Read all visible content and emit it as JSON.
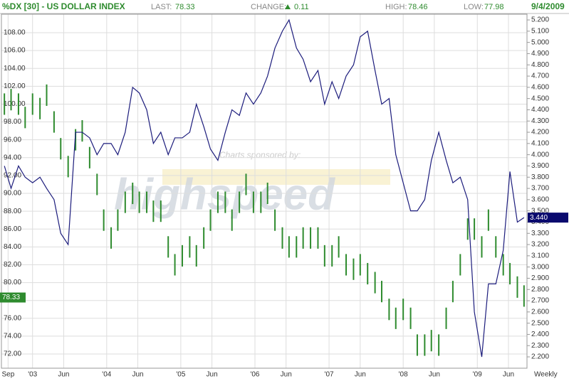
{
  "chart_data": {
    "type": "financial",
    "title": "%DX [30] - US DOLLAR INDEX",
    "stats": {
      "last_label": "LAST:",
      "last": 78.33,
      "change_label": "CHANGE:",
      "change": 0.11,
      "high_label": "HIGH:",
      "high": 78.46,
      "low_label": "LOW:",
      "low": 77.98,
      "date": "9/4/2009"
    },
    "xlabel": "Weekly",
    "annotations": [
      "Charts sponsored by:",
      "highspeed"
    ],
    "grid": true,
    "xlim": [
      2002.58,
      2009.67
    ],
    "xticks": [
      {
        "value": 2002.67,
        "label": "Sep"
      },
      {
        "value": 2003.0,
        "label": "'03"
      },
      {
        "value": 2003.42,
        "label": "Jun"
      },
      {
        "value": 2004.0,
        "label": "'04"
      },
      {
        "value": 2004.42,
        "label": "Jun"
      },
      {
        "value": 2005.0,
        "label": "'05"
      },
      {
        "value": 2005.42,
        "label": "Jun"
      },
      {
        "value": 2006.0,
        "label": "'06"
      },
      {
        "value": 2006.42,
        "label": "Jun"
      },
      {
        "value": 2007.0,
        "label": "'07"
      },
      {
        "value": 2007.42,
        "label": "Jun"
      },
      {
        "value": 2008.0,
        "label": "'08"
      },
      {
        "value": 2008.42,
        "label": "Jun"
      },
      {
        "value": 2009.0,
        "label": "'09"
      },
      {
        "value": 2009.42,
        "label": "Jun"
      }
    ],
    "ylim": [
      70.41,
      110.07
    ],
    "yticks": [
      {
        "value": 72,
        "label": "72.00"
      },
      {
        "value": 74,
        "label": "74.00"
      },
      {
        "value": 76,
        "label": "76.00"
      },
      {
        "value": 78,
        "label": "78.00"
      },
      {
        "value": 80,
        "label": "80.00"
      },
      {
        "value": 82,
        "label": "82.00"
      },
      {
        "value": 84,
        "label": "84.00"
      },
      {
        "value": 86,
        "label": "86.00"
      },
      {
        "value": 88,
        "label": "88.00"
      },
      {
        "value": 90,
        "label": "90.00"
      },
      {
        "value": 92,
        "label": "92.00"
      },
      {
        "value": 94,
        "label": "94.00"
      },
      {
        "value": 96,
        "label": "96.00"
      },
      {
        "value": 98,
        "label": "98.00"
      },
      {
        "value": 100,
        "label": "100.00"
      },
      {
        "value": 102,
        "label": "102.00"
      },
      {
        "value": 104,
        "label": "104.00"
      },
      {
        "value": 106,
        "label": "106.00"
      },
      {
        "value": 108,
        "label": "108.00"
      }
    ],
    "y2lim": [
      2.099,
      5.251
    ],
    "y2ticks": [
      {
        "value": 2.2,
        "label": "2.200"
      },
      {
        "value": 2.3,
        "label": "2.300"
      },
      {
        "value": 2.4,
        "label": "2.400"
      },
      {
        "value": 2.5,
        "label": "2.500"
      },
      {
        "value": 2.6,
        "label": "2.600"
      },
      {
        "value": 2.7,
        "label": "2.700"
      },
      {
        "value": 2.8,
        "label": "2.800"
      },
      {
        "value": 2.9,
        "label": "2.900"
      },
      {
        "value": 3.0,
        "label": "3.000"
      },
      {
        "value": 3.1,
        "label": "3.100"
      },
      {
        "value": 3.2,
        "label": "3.200"
      },
      {
        "value": 3.3,
        "label": "3.300"
      },
      {
        "value": 3.4,
        "label": "3.400"
      },
      {
        "value": 3.5,
        "label": "3.500"
      },
      {
        "value": 3.6,
        "label": "3.600"
      },
      {
        "value": 3.7,
        "label": "3.700"
      },
      {
        "value": 3.8,
        "label": "3.800"
      },
      {
        "value": 3.9,
        "label": "3.900"
      },
      {
        "value": 4.0,
        "label": "4.000"
      },
      {
        "value": 4.1,
        "label": "4.100"
      },
      {
        "value": 4.2,
        "label": "4.200"
      },
      {
        "value": 4.3,
        "label": "4.300"
      },
      {
        "value": 4.4,
        "label": "4.400"
      },
      {
        "value": 4.5,
        "label": "4.500"
      },
      {
        "value": 4.6,
        "label": "4.600"
      },
      {
        "value": 4.7,
        "label": "4.700"
      },
      {
        "value": 4.8,
        "label": "4.800"
      },
      {
        "value": 4.9,
        "label": "4.900"
      },
      {
        "value": 5.0,
        "label": "5.000"
      },
      {
        "value": 5.1,
        "label": "5.100"
      },
      {
        "value": 5.2,
        "label": "5.200"
      }
    ],
    "x": [
      2002.62,
      2002.71,
      2002.81,
      2002.9,
      2003.0,
      2003.1,
      2003.19,
      2003.29,
      2003.38,
      2003.48,
      2003.58,
      2003.67,
      2003.77,
      2003.87,
      2003.96,
      2004.06,
      2004.15,
      2004.25,
      2004.35,
      2004.44,
      2004.54,
      2004.63,
      2004.73,
      2004.83,
      2004.92,
      2005.02,
      2005.12,
      2005.21,
      2005.31,
      2005.4,
      2005.5,
      2005.6,
      2005.69,
      2005.79,
      2005.88,
      2005.98,
      2006.08,
      2006.17,
      2006.27,
      2006.37,
      2006.46,
      2006.56,
      2006.65,
      2006.75,
      2006.85,
      2006.94,
      2007.04,
      2007.13,
      2007.23,
      2007.33,
      2007.42,
      2007.52,
      2007.62,
      2007.71,
      2007.81,
      2007.9,
      2008.0,
      2008.1,
      2008.19,
      2008.29,
      2008.38,
      2008.48,
      2008.58,
      2008.67,
      2008.77,
      2008.87,
      2008.96,
      2009.06,
      2009.15,
      2009.25,
      2009.35,
      2009.44,
      2009.54,
      2009.63
    ],
    "series": [
      {
        "type": "hilo",
        "color": "#2e8b2e",
        "low": [
          98.8,
          99.3,
          98.8,
          97.3,
          98.8,
          98.3,
          99.8,
          96.8,
          93.8,
          91.8,
          94.8,
          95.8,
          92.8,
          89.8,
          85.8,
          83.8,
          85.8,
          87.8,
          88.8,
          87.8,
          87.8,
          86.8,
          86.8,
          82.8,
          80.8,
          81.8,
          82.8,
          81.8,
          83.8,
          85.8,
          87.8,
          87.8,
          85.8,
          87.8,
          89.8,
          87.8,
          87.8,
          88.8,
          85.8,
          83.8,
          82.8,
          82.8,
          83.8,
          83.8,
          83.8,
          81.8,
          81.8,
          82.8,
          80.8,
          80.3,
          80.8,
          79.8,
          78.8,
          77.8,
          75.8,
          74.8,
          75.8,
          74.8,
          71.8,
          71.8,
          72.3,
          71.8,
          74.8,
          77.8,
          80.8,
          84.8,
          84.8,
          82.8,
          85.8,
          82.8,
          80.8,
          79.8,
          78.3,
          77.3
        ],
        "high": [
          101.2,
          101.7,
          101.2,
          99.7,
          101.2,
          100.7,
          102.2,
          99.2,
          96.2,
          94.2,
          97.2,
          98.2,
          95.2,
          92.2,
          88.2,
          86.2,
          88.2,
          90.2,
          91.2,
          90.2,
          90.2,
          89.2,
          89.2,
          85.2,
          83.2,
          84.2,
          85.2,
          84.2,
          86.2,
          88.2,
          90.2,
          90.2,
          88.2,
          90.2,
          92.2,
          90.2,
          90.2,
          91.2,
          88.2,
          86.2,
          85.2,
          85.2,
          86.2,
          86.2,
          86.2,
          84.2,
          84.2,
          85.2,
          83.2,
          82.7,
          83.2,
          82.2,
          81.2,
          80.2,
          78.2,
          77.2,
          78.2,
          77.2,
          74.2,
          74.2,
          74.7,
          74.2,
          77.2,
          80.2,
          83.2,
          87.2,
          87.2,
          85.2,
          88.2,
          85.2,
          83.2,
          82.2,
          80.7,
          79.7
        ],
        "last": 78.33
      },
      {
        "type": "line",
        "axis": "y2",
        "color": "#1c1c7c",
        "values": [
          3.9,
          3.7,
          3.9,
          3.8,
          3.75,
          3.8,
          3.7,
          3.6,
          3.3,
          3.2,
          4.2,
          4.2,
          4.15,
          4.0,
          4.1,
          4.1,
          4.0,
          4.2,
          4.6,
          4.55,
          4.4,
          4.1,
          4.2,
          4.0,
          4.15,
          4.15,
          4.2,
          4.45,
          4.25,
          4.05,
          3.95,
          4.2,
          4.4,
          4.35,
          4.55,
          4.45,
          4.55,
          4.7,
          4.95,
          5.1,
          5.2,
          4.95,
          4.85,
          4.65,
          4.75,
          4.45,
          4.65,
          4.5,
          4.7,
          4.8,
          5.05,
          5.1,
          4.75,
          4.45,
          4.5,
          4.0,
          3.75,
          3.5,
          3.5,
          3.6,
          3.95,
          4.2,
          3.95,
          3.75,
          3.8,
          3.6,
          2.6,
          2.2,
          2.85,
          2.85,
          3.15,
          3.85,
          3.4,
          3.44
        ],
        "last": {
          "value": 3.44,
          "label": "3.440"
        }
      }
    ]
  }
}
